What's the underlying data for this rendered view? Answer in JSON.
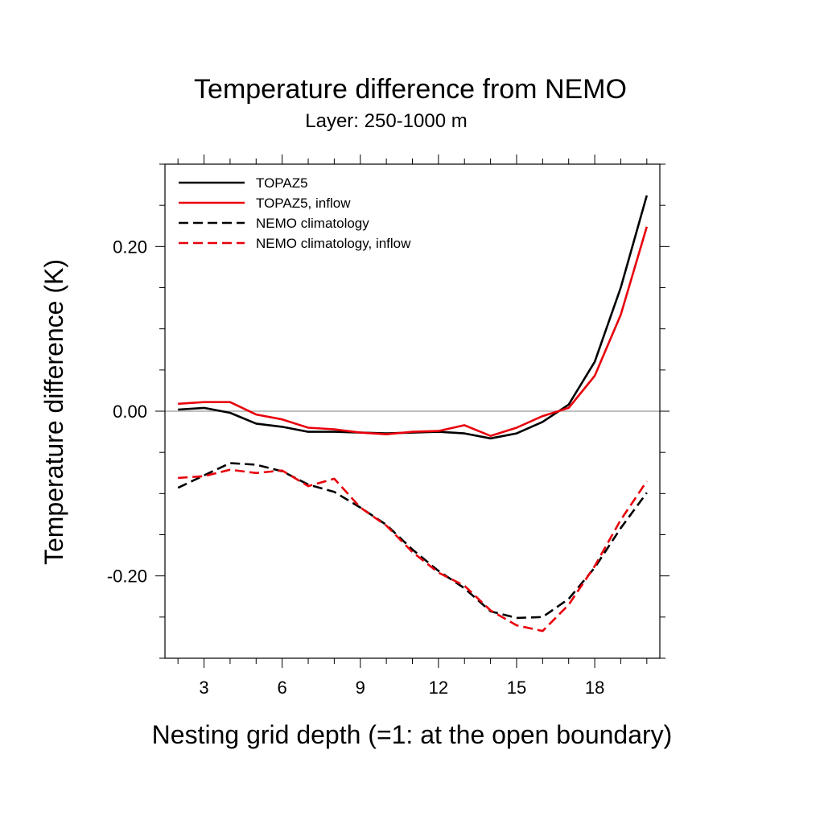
{
  "chart_data": {
    "type": "line",
    "title": "Temperature difference from NEMO",
    "subtitle": "Layer: 250-1000 m",
    "xlabel": "Nesting grid depth (=1: at the open boundary)",
    "ylabel": "Temperature difference (K)",
    "xlim": [
      1.5,
      20.5
    ],
    "ylim": [
      -0.3,
      0.3
    ],
    "xticks": [
      3,
      6,
      9,
      12,
      15,
      18
    ],
    "xtick_labels": [
      "3",
      "6",
      "9",
      "12",
      "15",
      "18"
    ],
    "yticks": [
      0.2,
      0.0,
      -0.2
    ],
    "ytick_labels": [
      "0.20",
      "0.00",
      "-0.20"
    ],
    "reference_line": 0.0,
    "legend_position": "top-left",
    "x": [
      2,
      3,
      4,
      5,
      6,
      7,
      8,
      9,
      10,
      11,
      12,
      13,
      14,
      15,
      16,
      17,
      18,
      19,
      20
    ],
    "series": [
      {
        "name": "TOPAZ5",
        "color": "#000000",
        "dash": "solid",
        "values": [
          0.002,
          0.004,
          -0.002,
          -0.015,
          -0.019,
          -0.025,
          -0.025,
          -0.026,
          -0.027,
          -0.026,
          -0.025,
          -0.027,
          -0.033,
          -0.027,
          -0.013,
          0.008,
          0.06,
          0.15,
          0.262
        ]
      },
      {
        "name": "TOPAZ5, inflow",
        "color": "#e8000b",
        "dash": "solid",
        "values": [
          0.009,
          0.011,
          0.011,
          -0.004,
          -0.01,
          -0.02,
          -0.022,
          -0.026,
          -0.028,
          -0.025,
          -0.024,
          -0.017,
          -0.03,
          -0.02,
          -0.006,
          0.004,
          0.043,
          0.117,
          0.224
        ]
      },
      {
        "name": "NEMO climatology",
        "color": "#000000",
        "dash": "dashed",
        "values": [
          -0.093,
          -0.078,
          -0.063,
          -0.065,
          -0.073,
          -0.089,
          -0.098,
          -0.117,
          -0.138,
          -0.168,
          -0.194,
          -0.215,
          -0.243,
          -0.251,
          -0.25,
          -0.228,
          -0.19,
          -0.142,
          -0.099
        ]
      },
      {
        "name": "NEMO climatology, inflow",
        "color": "#e8000b",
        "dash": "dashed",
        "values": [
          -0.081,
          -0.079,
          -0.071,
          -0.075,
          -0.072,
          -0.091,
          -0.082,
          -0.117,
          -0.139,
          -0.171,
          -0.196,
          -0.212,
          -0.242,
          -0.26,
          -0.267,
          -0.235,
          -0.188,
          -0.132,
          -0.085
        ]
      }
    ]
  }
}
